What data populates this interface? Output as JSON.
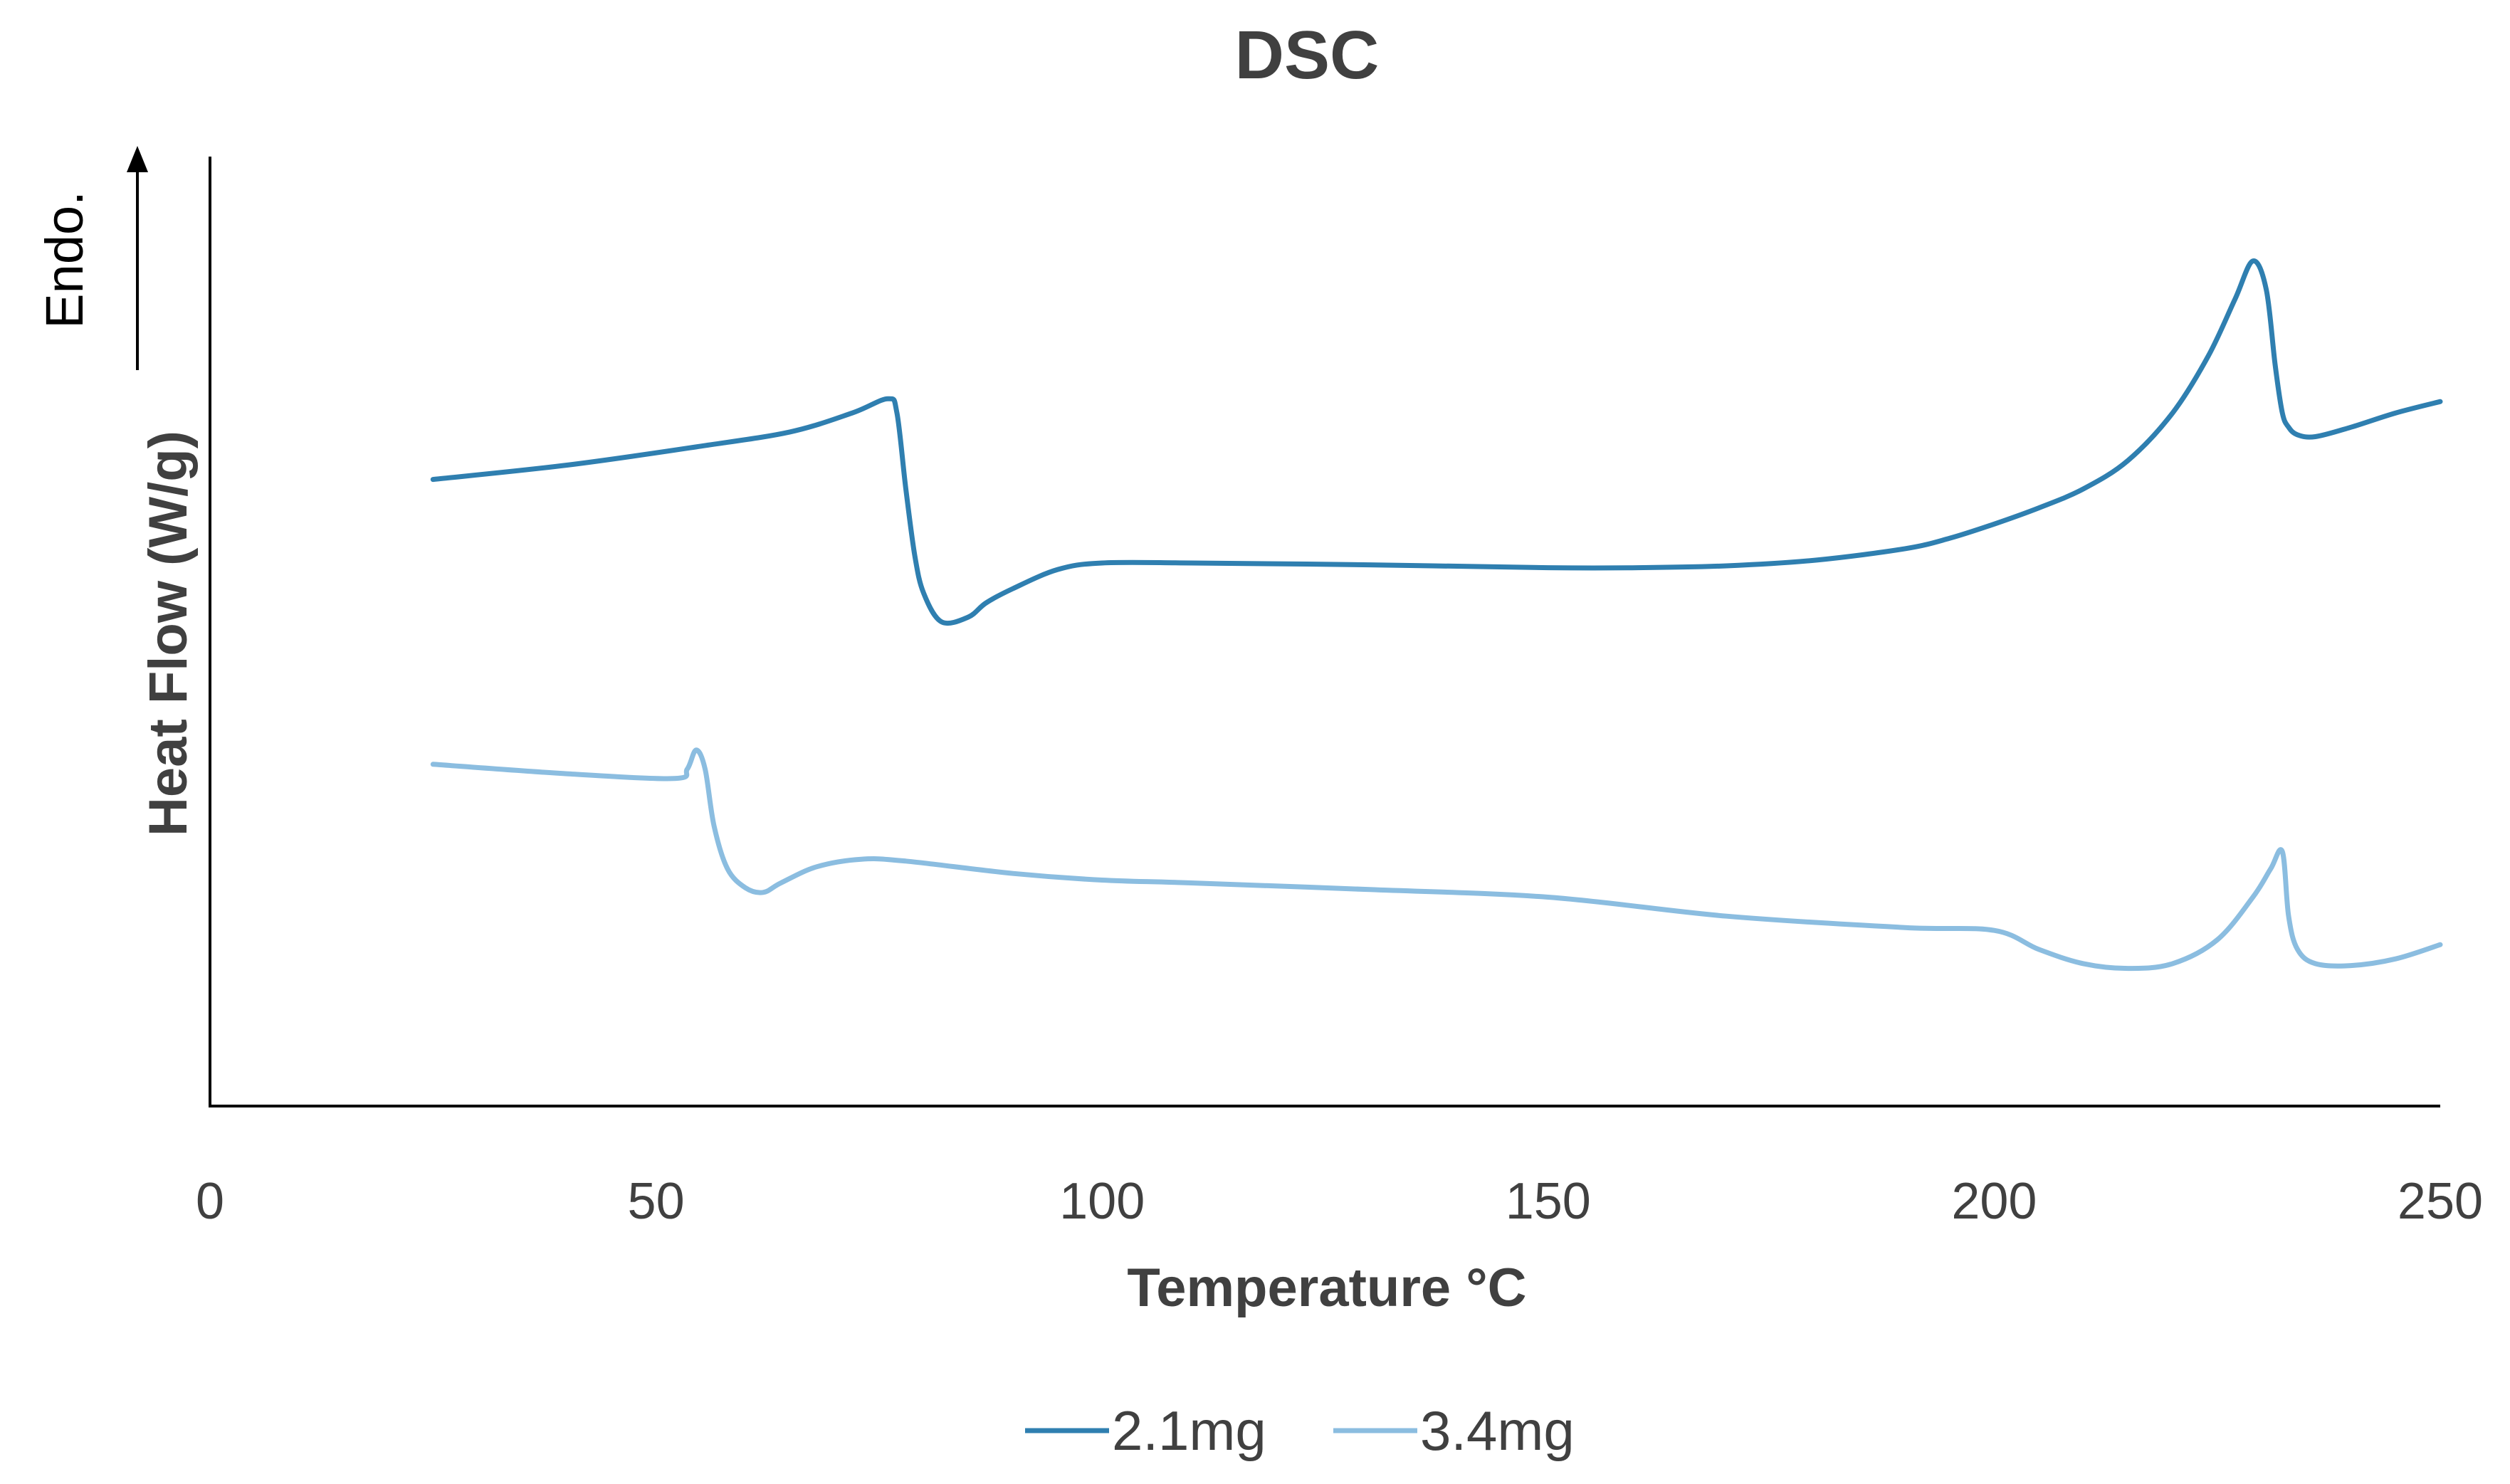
{
  "chart_data": {
    "type": "line",
    "title": "DSC",
    "xlabel": "Temperature °C",
    "ylabel": "Heat Flow (W/g)",
    "direction_label": "Endo.",
    "xlim": [
      0,
      250
    ],
    "ylim": [
      0,
      10
    ],
    "xticks": [
      0,
      50,
      100,
      150,
      200,
      250
    ],
    "grid": false,
    "legend_position": "bottom",
    "series": [
      {
        "name": "2.1mg",
        "color": "#2f7fb0",
        "x": [
          25,
          40,
          55,
          65,
          72,
          76,
          77,
          78,
          79,
          80,
          82,
          85,
          87,
          90,
          95,
          100,
          110,
          130,
          150,
          160,
          170,
          180,
          190,
          195,
          200,
          205,
          210,
          215,
          220,
          224,
          227,
          229,
          230.5,
          231.5,
          232.3,
          233,
          234,
          236,
          240,
          245,
          250
        ],
        "y": [
          6.6,
          6.75,
          6.95,
          7.1,
          7.3,
          7.45,
          7.3,
          6.5,
          5.8,
          5.4,
          5.1,
          5.15,
          5.3,
          5.45,
          5.65,
          5.72,
          5.72,
          5.7,
          5.67,
          5.67,
          5.69,
          5.75,
          5.87,
          5.98,
          6.13,
          6.3,
          6.5,
          6.8,
          7.3,
          7.9,
          8.5,
          8.9,
          8.6,
          7.8,
          7.3,
          7.15,
          7.07,
          7.05,
          7.15,
          7.3,
          7.42
        ]
      },
      {
        "name": "3.4mg",
        "color": "#8bbde0",
        "x": [
          25,
          40,
          52,
          53.5,
          54.5,
          55.5,
          56.5,
          58,
          60,
          62,
          64,
          68,
          73,
          78,
          90,
          100,
          110,
          130,
          150,
          170,
          190,
          200,
          205,
          210,
          215,
          220,
          225,
          229,
          231,
          232.3,
          233,
          234,
          236,
          240,
          245,
          250
        ],
        "y": [
          3.6,
          3.5,
          3.45,
          3.55,
          3.75,
          3.55,
          2.95,
          2.5,
          2.3,
          2.25,
          2.35,
          2.52,
          2.6,
          2.58,
          2.45,
          2.38,
          2.35,
          2.28,
          2.2,
          2.0,
          1.88,
          1.85,
          1.65,
          1.5,
          1.45,
          1.5,
          1.75,
          2.2,
          2.5,
          2.68,
          2.0,
          1.65,
          1.5,
          1.48,
          1.55,
          1.7
        ]
      }
    ]
  }
}
